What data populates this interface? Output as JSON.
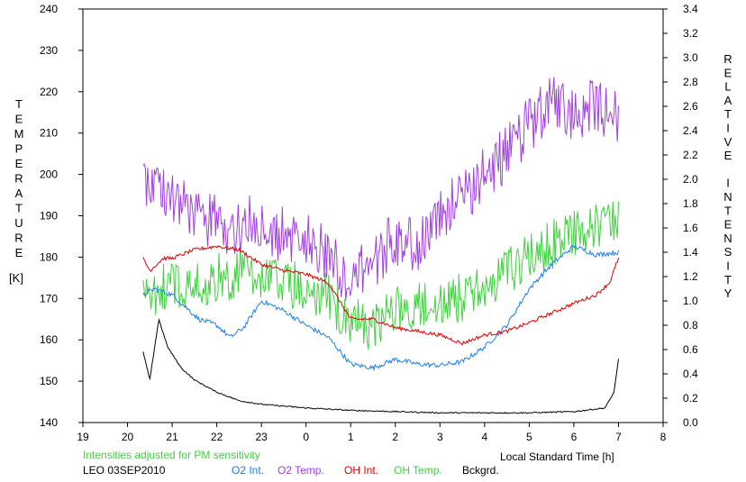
{
  "chart_data": {
    "type": "line",
    "ylabel_left": "TEMPERATURE",
    "ylabel_left_unit": "[K]",
    "ylabel_right": "RELATIVE INTENSITY",
    "xlabel": "Local Standard Time [h]",
    "note": "Intensities adjusted for PM sensitivity",
    "station_date": "LEO 03SEP2010",
    "xlim": [
      19,
      32
    ],
    "ylim_left": [
      140,
      240
    ],
    "ylim_right": [
      0,
      3.4
    ],
    "x_ticks": [
      19,
      20,
      21,
      22,
      23,
      24,
      25,
      26,
      27,
      28,
      29,
      30,
      31,
      32
    ],
    "x_tick_labels": [
      "19",
      "20",
      "21",
      "22",
      "23",
      "0",
      "1",
      "2",
      "3",
      "4",
      "5",
      "6",
      "7",
      "8"
    ],
    "y_left_ticks": [
      140,
      150,
      160,
      170,
      180,
      190,
      200,
      210,
      220,
      230,
      240
    ],
    "y_left_tick_labels": [
      "140",
      "150",
      "160",
      "170",
      "180",
      "190",
      "200",
      "210",
      "220",
      "230",
      "240"
    ],
    "y_right_ticks": [
      0,
      0.2,
      0.4,
      0.6,
      0.8,
      1.0,
      1.2,
      1.4,
      1.6,
      1.8,
      2.0,
      2.2,
      2.4,
      2.6,
      2.8,
      3.0,
      3.2,
      3.4
    ],
    "y_right_tick_labels": [
      "0.0",
      "0.2",
      "0.4",
      "0.6",
      "0.8",
      "1.0",
      "1.2",
      "1.4",
      "1.6",
      "1.8",
      "2.0",
      "2.2",
      "2.4",
      "2.6",
      "2.8",
      "3.0",
      "3.2",
      "3.4"
    ],
    "series": [
      {
        "name": "O2 Temp.",
        "axis": "left",
        "color": "#a040e0",
        "noise": 7,
        "x": [
          20.35,
          20.7,
          21.0,
          21.5,
          22.0,
          22.5,
          23.0,
          23.5,
          24.0,
          24.5,
          25.0,
          25.5,
          26.0,
          26.5,
          27.0,
          27.5,
          28.0,
          28.5,
          29.0,
          29.5,
          30.0,
          30.5,
          31.0
        ],
        "values": [
          200,
          197,
          194,
          190,
          188,
          187,
          189,
          185,
          184,
          180,
          175,
          178,
          185,
          183,
          190,
          195,
          200,
          205,
          212,
          218,
          215,
          217,
          213
        ]
      },
      {
        "name": "OH Temp.",
        "axis": "left",
        "color": "#40d040",
        "noise": 6,
        "x": [
          20.35,
          20.7,
          21.0,
          21.5,
          22.0,
          22.5,
          23.0,
          23.5,
          24.0,
          24.5,
          25.0,
          25.5,
          26.0,
          26.5,
          27.0,
          27.5,
          28.0,
          28.5,
          29.0,
          29.5,
          30.0,
          30.5,
          31.0
        ],
        "values": [
          170,
          172,
          174,
          173,
          175,
          176,
          176,
          174,
          172,
          170,
          165,
          163,
          168,
          168,
          170,
          170,
          172,
          176,
          180,
          183,
          186,
          188,
          190
        ]
      },
      {
        "name": "O2 Int.",
        "axis": "right",
        "color": "#2080e0",
        "noise": 0.02,
        "x": [
          20.35,
          20.6,
          21.0,
          21.3,
          21.6,
          22.0,
          22.3,
          22.6,
          23.0,
          23.5,
          24.0,
          24.5,
          25.0,
          25.5,
          26.0,
          26.5,
          27.0,
          27.5,
          28.0,
          28.5,
          29.0,
          29.5,
          30.0,
          30.5,
          31.0
        ],
        "values": [
          1.05,
          1.1,
          1.05,
          0.95,
          0.85,
          0.8,
          0.7,
          0.78,
          1.0,
          0.92,
          0.8,
          0.7,
          0.48,
          0.45,
          0.52,
          0.48,
          0.47,
          0.5,
          0.62,
          0.8,
          1.1,
          1.3,
          1.45,
          1.38,
          1.4
        ]
      },
      {
        "name": "OH Int.",
        "axis": "right",
        "color": "#e00000",
        "noise": 0.015,
        "x": [
          20.35,
          20.5,
          20.8,
          21.0,
          21.5,
          22.0,
          22.5,
          23.0,
          23.5,
          24.0,
          24.5,
          25.0,
          25.5,
          26.0,
          26.5,
          27.0,
          27.5,
          28.0,
          28.5,
          29.0,
          29.5,
          30.0,
          30.5,
          30.8,
          31.0
        ],
        "values": [
          1.35,
          1.25,
          1.35,
          1.35,
          1.42,
          1.45,
          1.42,
          1.3,
          1.25,
          1.22,
          1.15,
          0.85,
          0.85,
          0.78,
          0.75,
          0.72,
          0.65,
          0.72,
          0.75,
          0.82,
          0.9,
          0.98,
          1.05,
          1.15,
          1.35
        ]
      },
      {
        "name": "Bckgrd.",
        "axis": "right",
        "color": "#000000",
        "noise": 0.005,
        "x": [
          20.35,
          20.5,
          20.7,
          20.9,
          21.2,
          21.5,
          22.0,
          22.5,
          23.0,
          24.0,
          25.0,
          26.0,
          27.0,
          28.0,
          29.0,
          30.0,
          30.7,
          30.9,
          31.0
        ],
        "values": [
          0.58,
          0.35,
          0.85,
          0.62,
          0.45,
          0.35,
          0.25,
          0.18,
          0.15,
          0.12,
          0.1,
          0.09,
          0.08,
          0.08,
          0.08,
          0.09,
          0.12,
          0.25,
          0.52
        ]
      }
    ]
  },
  "legend": [
    {
      "label": "O2 Int.",
      "color": "#2080e0"
    },
    {
      "label": "O2 Temp.",
      "color": "#a040e0"
    },
    {
      "label": "OH Int.",
      "color": "#e00000"
    },
    {
      "label": "OH Temp.",
      "color": "#40d040"
    },
    {
      "label": "Bckgrd.",
      "color": "#000000"
    }
  ],
  "note_color": "#40d040"
}
